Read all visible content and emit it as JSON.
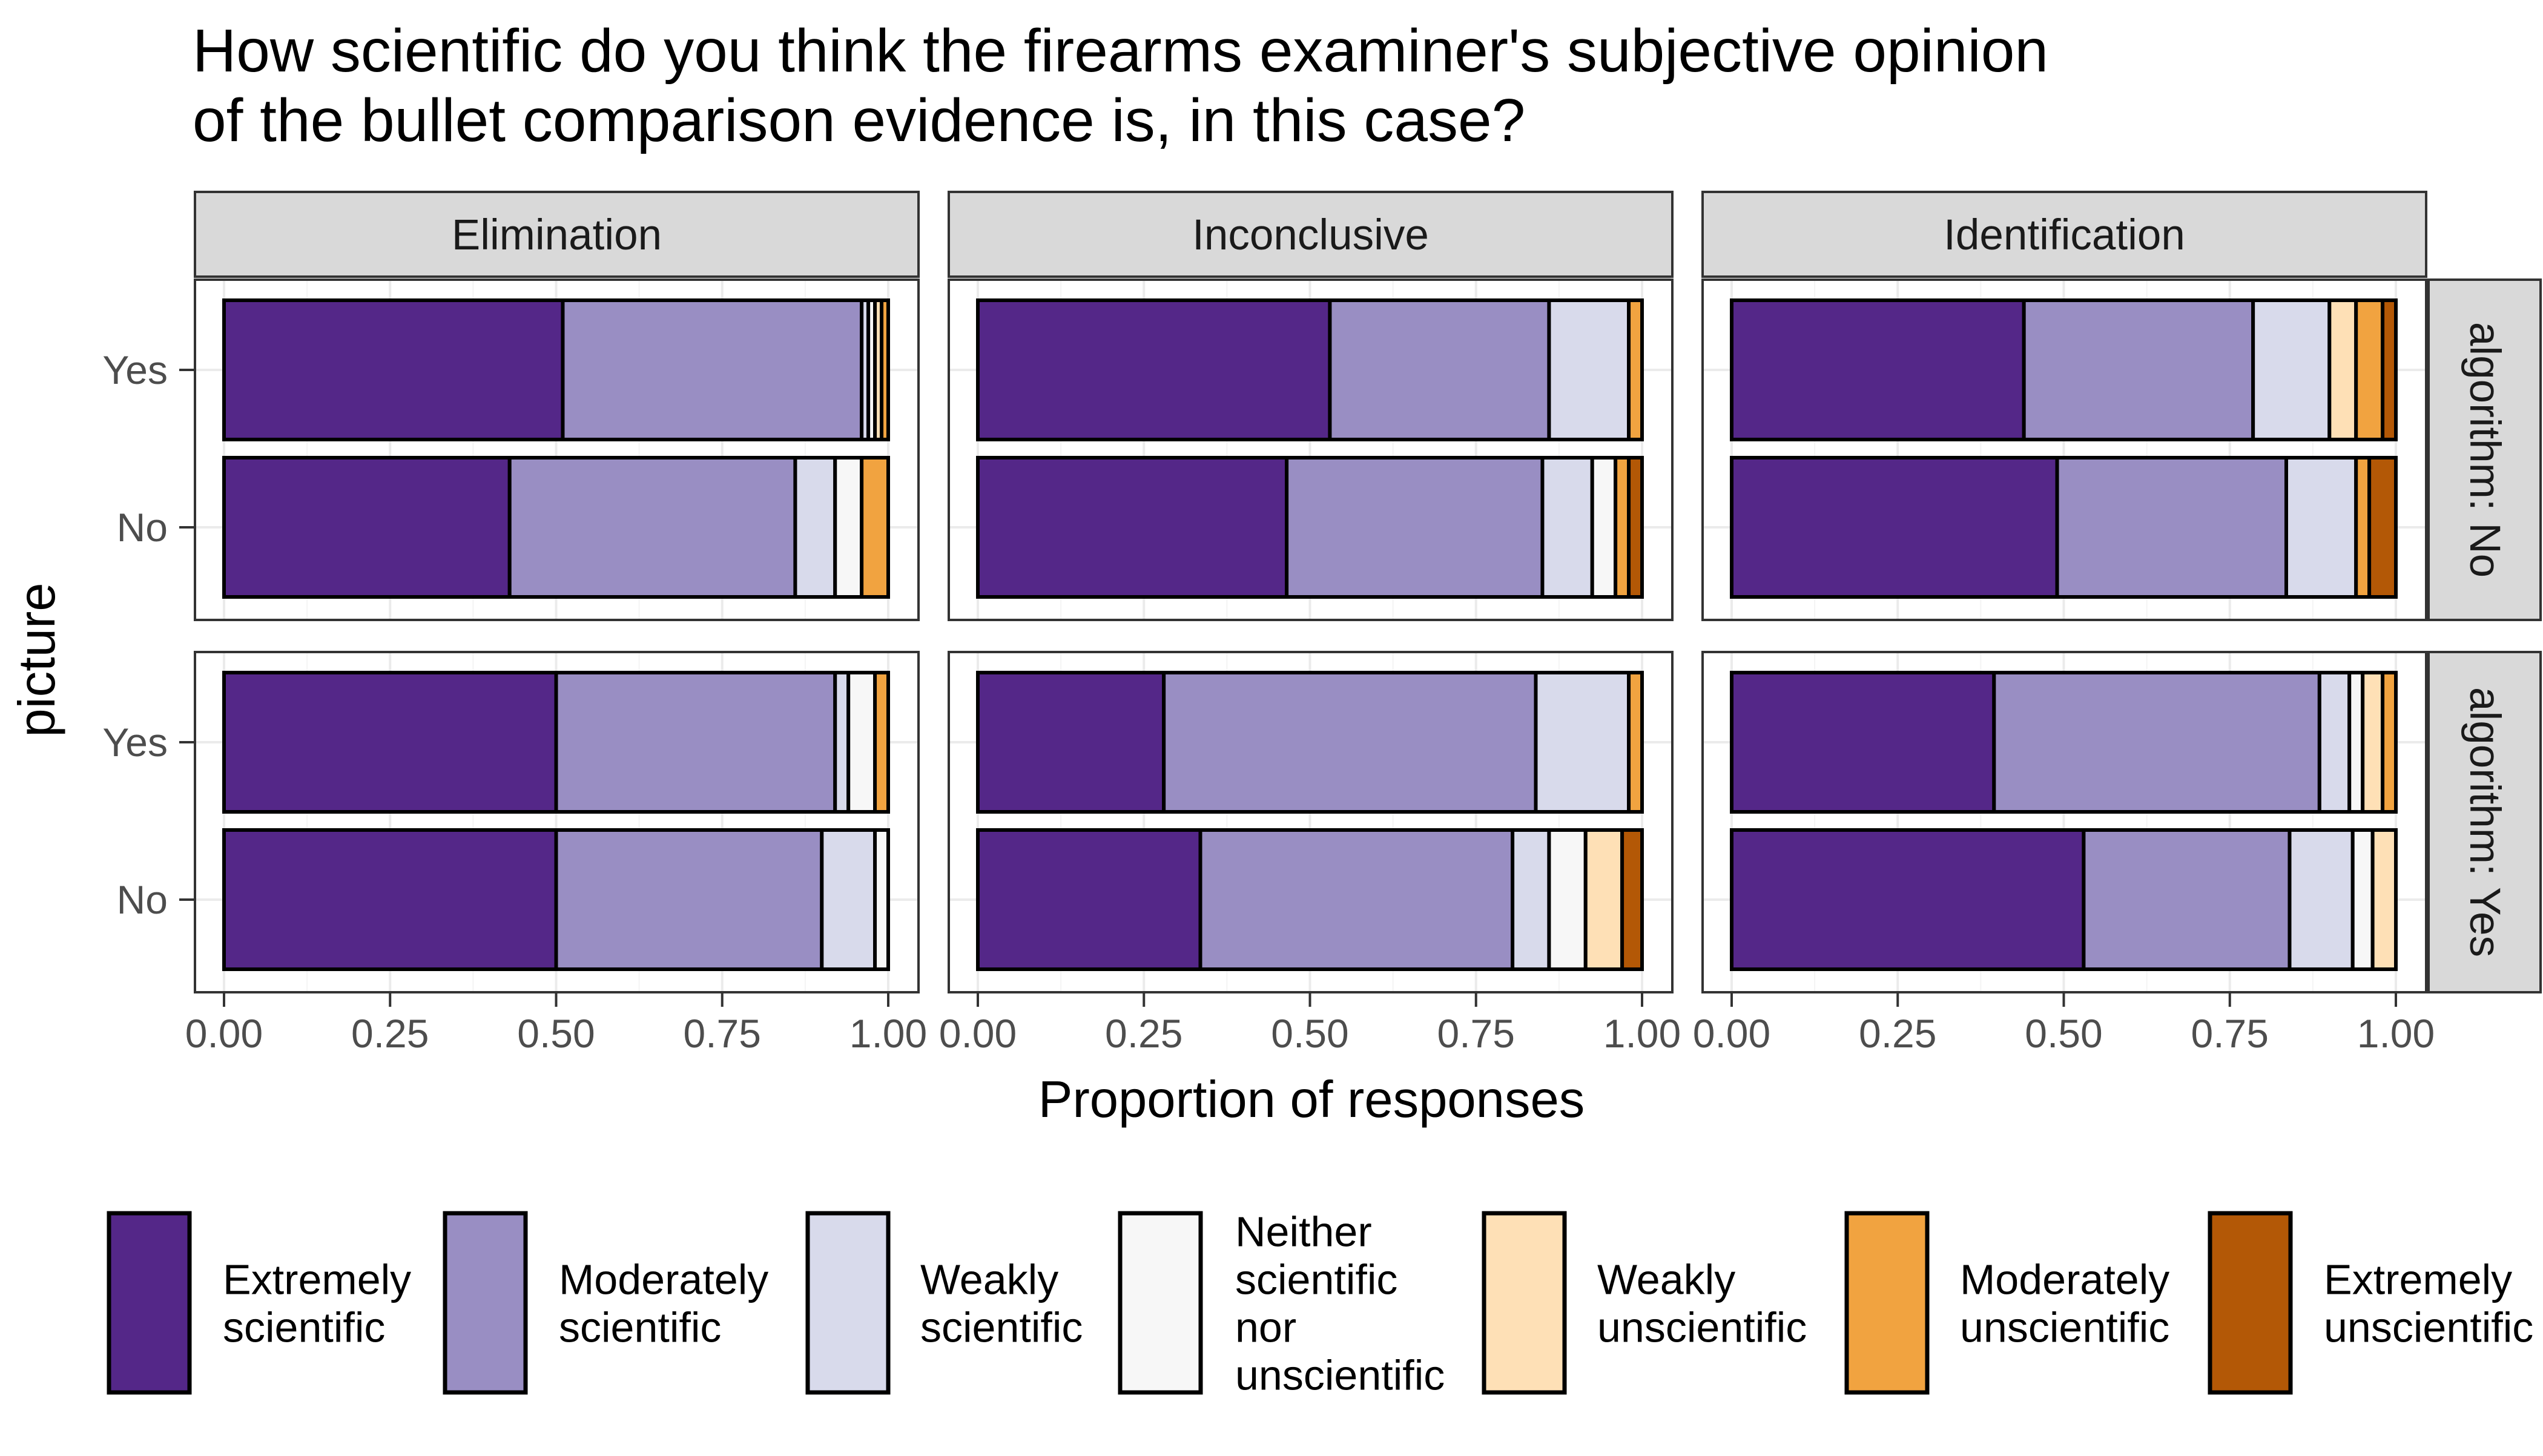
{
  "chart_data": {
    "type": "bar",
    "orientation": "horizontal",
    "stacked": true,
    "title_lines": [
      "How scientific do you think the firearms examiner's subjective opinion",
      " of the bullet comparison evidence is, in this case?"
    ],
    "xlabel": "Proportion of responses",
    "ylabel": "picture",
    "xlim": [
      0,
      1
    ],
    "x_ticks": [
      "0.00",
      "0.25",
      "0.50",
      "0.75",
      "1.00"
    ],
    "grid": true,
    "legend_position": "bottom",
    "column_facet_labels": [
      "Elimination",
      "Inconclusive",
      "Identification"
    ],
    "row_facet_labels": [
      "algorithm: No",
      "algorithm: Yes"
    ],
    "categories": [
      "Yes",
      "No"
    ],
    "response_levels": [
      {
        "legend_lines": [
          "Extremely",
          "scientific"
        ],
        "color": "#542788"
      },
      {
        "legend_lines": [
          "Moderately",
          "scientific"
        ],
        "color": "#998EC3"
      },
      {
        "legend_lines": [
          "Weakly",
          "scientific"
        ],
        "color": "#D8DAEB"
      },
      {
        "legend_lines": [
          "Neither",
          "scientific",
          "nor",
          "unscientific"
        ],
        "color": "#F7F7F7"
      },
      {
        "legend_lines": [
          "Weakly",
          "unscientific"
        ],
        "color": "#FEE0B6"
      },
      {
        "legend_lines": [
          "Moderately",
          "unscientific"
        ],
        "color": "#F1A340"
      },
      {
        "legend_lines": [
          "Extremely",
          "unscientific"
        ],
        "color": "#B35806"
      }
    ],
    "panels": [
      {
        "column": "Elimination",
        "row": "algorithm: No",
        "bars": [
          {
            "picture": "Yes",
            "values": [
              0.51,
              0.45,
              0.01,
              0.01,
              0.01,
              0.01,
              0.0
            ]
          },
          {
            "picture": "No",
            "values": [
              0.43,
              0.43,
              0.06,
              0.04,
              0.0,
              0.04,
              0.0
            ]
          }
        ]
      },
      {
        "column": "Inconclusive",
        "row": "algorithm: No",
        "bars": [
          {
            "picture": "Yes",
            "values": [
              0.53,
              0.33,
              0.12,
              0.0,
              0.0,
              0.02,
              0.0
            ]
          },
          {
            "picture": "No",
            "values": [
              0.465,
              0.385,
              0.075,
              0.035,
              0.0,
              0.02,
              0.02
            ]
          }
        ]
      },
      {
        "column": "Identification",
        "row": "algorithm: No",
        "bars": [
          {
            "picture": "Yes",
            "values": [
              0.44,
              0.345,
              0.115,
              0.0,
              0.04,
              0.04,
              0.02
            ]
          },
          {
            "picture": "No",
            "values": [
              0.49,
              0.345,
              0.105,
              0.0,
              0.0,
              0.02,
              0.04
            ]
          }
        ]
      },
      {
        "column": "Elimination",
        "row": "algorithm: Yes",
        "bars": [
          {
            "picture": "Yes",
            "values": [
              0.5,
              0.42,
              0.02,
              0.04,
              0.0,
              0.02,
              0.0
            ]
          },
          {
            "picture": "No",
            "values": [
              0.5,
              0.4,
              0.08,
              0.02,
              0.0,
              0.0,
              0.0
            ]
          }
        ]
      },
      {
        "column": "Inconclusive",
        "row": "algorithm: Yes",
        "bars": [
          {
            "picture": "Yes",
            "values": [
              0.28,
              0.56,
              0.14,
              0.0,
              0.0,
              0.02,
              0.0
            ]
          },
          {
            "picture": "No",
            "values": [
              0.335,
              0.47,
              0.055,
              0.055,
              0.055,
              0.0,
              0.03
            ]
          }
        ]
      },
      {
        "column": "Identification",
        "row": "algorithm: Yes",
        "bars": [
          {
            "picture": "Yes",
            "values": [
              0.395,
              0.49,
              0.045,
              0.02,
              0.03,
              0.02,
              0.0
            ]
          },
          {
            "picture": "No",
            "values": [
              0.53,
              0.31,
              0.095,
              0.03,
              0.035,
              0.0,
              0.0
            ]
          }
        ]
      }
    ]
  }
}
